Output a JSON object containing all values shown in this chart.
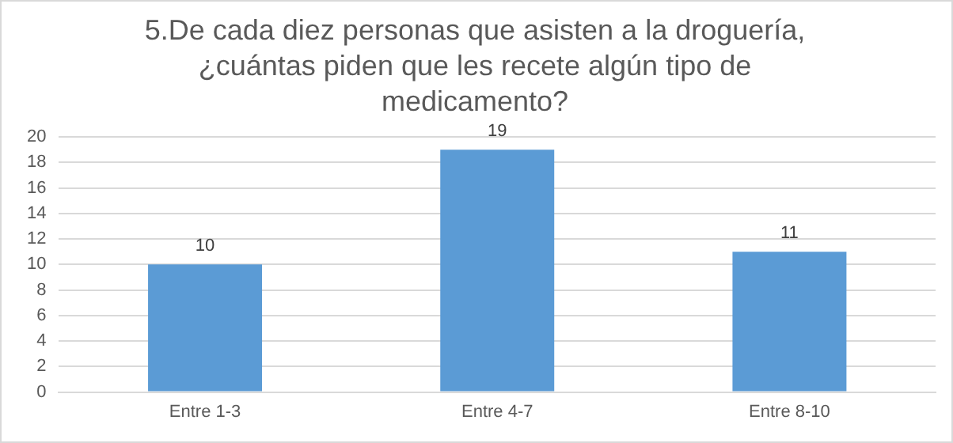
{
  "chart_data": {
    "type": "bar",
    "title": "5.De cada diez personas que asisten a la droguería, ¿cuántas piden que les recete algún tipo de medicamento?",
    "categories": [
      "Entre 1-3",
      "Entre 4-7",
      "Entre 8-10"
    ],
    "values": [
      10,
      19,
      11
    ],
    "color": "#5b9bd5",
    "ylim": [
      0,
      20
    ],
    "yticks": [
      0,
      2,
      4,
      6,
      8,
      10,
      12,
      14,
      16,
      18,
      20
    ],
    "grid": "y",
    "legend": false,
    "data_labels": true
  }
}
